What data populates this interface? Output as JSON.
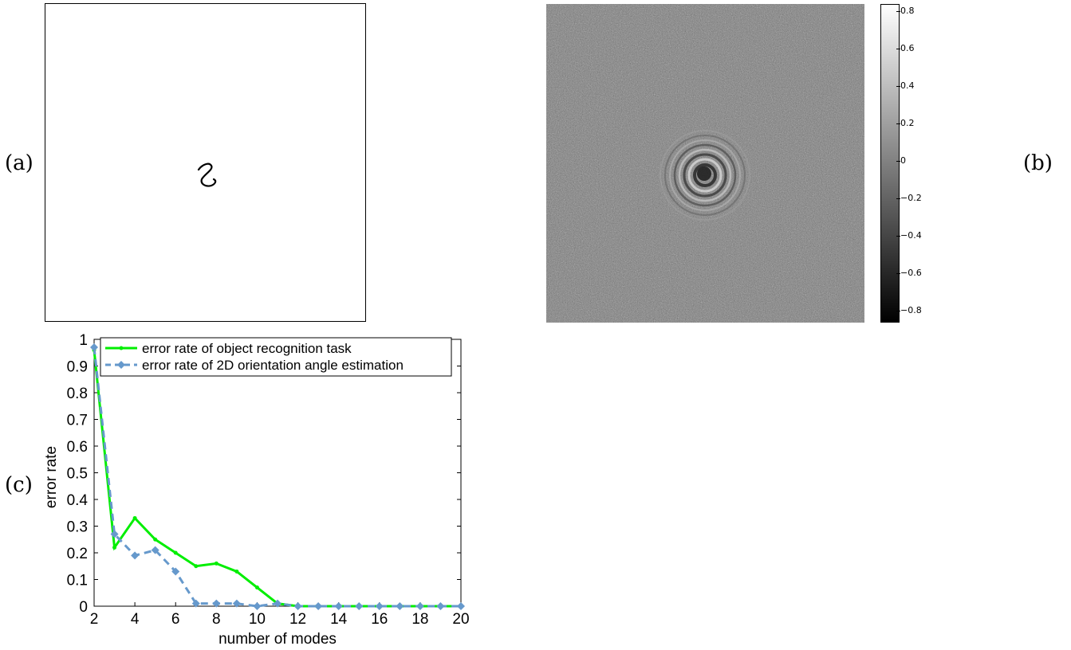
{
  "panels": {
    "a": "(a)",
    "b": "(b)",
    "c": "(c)"
  },
  "colorbar": {
    "ticks": [
      "0.8",
      "0.6",
      "0.4",
      "0.2",
      "0",
      "−0.2",
      "−0.4",
      "−0.6",
      "−0.8"
    ],
    "range": [
      -0.85,
      0.85
    ]
  },
  "chart_data": {
    "type": "line",
    "xlabel": "number of modes",
    "ylabel": "error rate",
    "xlim": [
      2,
      20
    ],
    "ylim": [
      0,
      1
    ],
    "xticks": [
      2,
      4,
      6,
      8,
      10,
      12,
      14,
      16,
      18,
      20
    ],
    "yticks": [
      0,
      0.1,
      0.2,
      0.3,
      0.4,
      0.5,
      0.6,
      0.7,
      0.8,
      0.9,
      1
    ],
    "ytick_labels": [
      "0",
      "0.1",
      "0.2",
      "0.3",
      "0.4",
      "0.5",
      "0.6",
      "0.7",
      "0.8",
      "0.9",
      "1"
    ],
    "legend_position": "top-right",
    "x": [
      2,
      3,
      4,
      5,
      6,
      7,
      8,
      9,
      10,
      11,
      12,
      13,
      14,
      15,
      16,
      17,
      18,
      19,
      20
    ],
    "series": [
      {
        "name": "error rate of object recognition task",
        "color": "#00ee00",
        "style": "solid",
        "marker": "point",
        "values": [
          0.96,
          0.22,
          0.33,
          0.25,
          0.2,
          0.15,
          0.16,
          0.13,
          0.07,
          0.01,
          0,
          0,
          0,
          0,
          0,
          0,
          0,
          0,
          0
        ]
      },
      {
        "name": "error rate of 2D orientation angle estimation",
        "color": "#6699cc",
        "style": "dashed",
        "marker": "diamond",
        "values": [
          0.97,
          0.27,
          0.19,
          0.21,
          0.13,
          0.01,
          0.01,
          0.01,
          0,
          0.01,
          0,
          0,
          0,
          0,
          0,
          0,
          0,
          0,
          0
        ]
      }
    ]
  }
}
